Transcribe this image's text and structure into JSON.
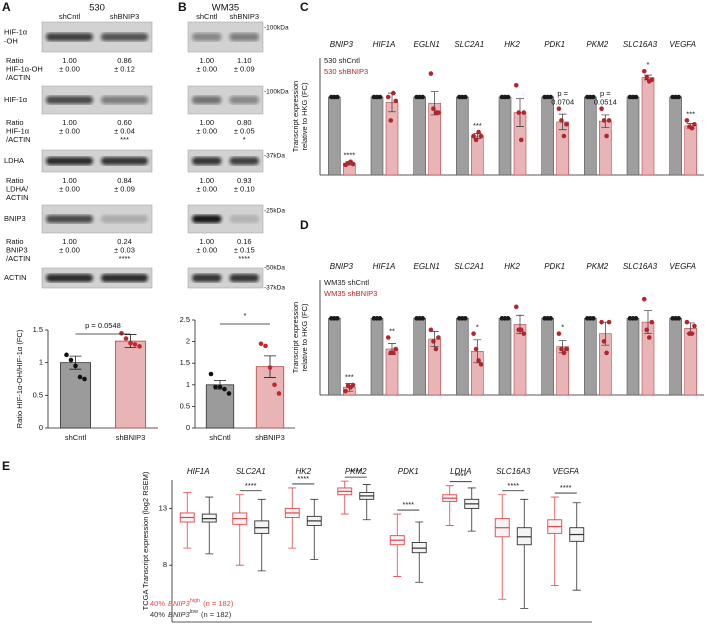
{
  "blot_panels": [
    {
      "panel": "A",
      "title": "530",
      "columns": [
        "shCntl",
        "shBNIP3"
      ],
      "rows": [
        {
          "name": [
            "HIF-1α",
            "-OH"
          ],
          "ratio_label": [
            "Ratio",
            "HIF-1α-OH",
            "/ACTIN"
          ],
          "ratios": [
            [
              "1.00",
              "± 0.00"
            ],
            [
              "0.86",
              "± 0.12"
            ]
          ]
        },
        {
          "name": [
            "HIF-1α"
          ],
          "ratio_label": [
            "Ratio",
            "HIF-1α",
            "/ACTIN"
          ],
          "ratios": [
            [
              "1.00",
              "± 0.00"
            ],
            [
              "0.60",
              "± 0.04"
            ]
          ],
          "significance": "***"
        },
        {
          "name": [
            "LDHA"
          ],
          "ratio_label": [
            "Ratio",
            "LDHA/",
            "ACTIN"
          ],
          "ratios": [
            [
              "1.00",
              "± 0.00"
            ],
            [
              "0.84",
              "± 0.09"
            ]
          ]
        },
        {
          "name": [
            "BNIP3"
          ],
          "ratio_label": [
            "Ratio",
            "BNIP3",
            "/ACTIN"
          ],
          "ratios": [
            [
              "1.00",
              "± 0.00"
            ],
            [
              "0.24",
              "± 0.03"
            ]
          ],
          "significance": "****"
        },
        {
          "name": [
            "ACTIN"
          ]
        }
      ]
    },
    {
      "panel": "B",
      "title": "WM35",
      "columns": [
        "shCntl",
        "shBNIP3"
      ],
      "rows": [
        {
          "markers": [
            "-100kDa"
          ],
          "ratios": [
            [
              "1.00",
              "± 0.00"
            ],
            [
              "1.10",
              "± 0.09"
            ]
          ]
        },
        {
          "markers": [
            "-100kDa"
          ],
          "ratios": [
            [
              "1.00",
              "± 0.00"
            ],
            [
              "0.80",
              "± 0.05"
            ]
          ],
          "significance": "*"
        },
        {
          "markers": [
            "-37kDa"
          ],
          "ratios": [
            [
              "1.00",
              "± 0.00"
            ],
            [
              "0.93",
              "± 0.10"
            ]
          ]
        },
        {
          "markers": [
            "-25kDa"
          ],
          "ratios": [
            [
              "1.00",
              "± 0.00"
            ],
            [
              "0.16",
              "± 0.15"
            ]
          ],
          "significance": "****"
        },
        {
          "markers": [
            "-50kDa",
            "-37kDa"
          ]
        }
      ]
    }
  ],
  "chart_data": [
    {
      "type": "bar",
      "categories": [
        "shCntl",
        "shBNIP3"
      ],
      "values": [
        1.0,
        1.33
      ],
      "errors": [
        0.1,
        0.1
      ],
      "points": [
        [
          1.12,
          1.04,
          0.95,
          0.78,
          0.75
        ],
        [
          1.45,
          1.37,
          1.3,
          1.28,
          1.25
        ]
      ],
      "colors": [
        "#9b9b9b",
        "#e8b4b6"
      ],
      "edgecolors": [
        "#333333",
        "#b5474c"
      ],
      "point_colors": [
        "#111111",
        "#c0282e"
      ],
      "ylim": [
        0,
        1.5
      ],
      "yticks": [
        0,
        0.5,
        1,
        1.5
      ],
      "ylabel": "Ratio HIF-1α-OH/HIF-1α (FC)",
      "annotation": "p = 0.0548"
    },
    {
      "type": "bar",
      "categories": [
        "shCntl",
        "shBNIP3"
      ],
      "values": [
        1.0,
        1.42
      ],
      "errors": [
        0.1,
        0.25
      ],
      "points": [
        [
          1.25,
          0.95,
          0.95,
          0.9,
          0.8
        ],
        [
          1.95,
          1.9,
          1.4,
          1.0,
          0.8
        ]
      ],
      "colors": [
        "#9b9b9b",
        "#e8b4b6"
      ],
      "edgecolors": [
        "#333333",
        "#b5474c"
      ],
      "point_colors": [
        "#111111",
        "#c0282e"
      ],
      "ylim": [
        0,
        2.5
      ],
      "yticks": [
        0,
        0.5,
        1,
        1.5,
        2,
        2.5
      ],
      "annotation": "*"
    },
    {
      "type": "grouped_bar",
      "panel": "C",
      "categories": [
        "BNIP3",
        "HIF1A",
        "EGLN1",
        "SLC2A1",
        "HK2",
        "PDK1",
        "PKM2",
        "SLC16A3",
        "VEGFA"
      ],
      "series": [
        {
          "name": "530 shCntl",
          "color": "#1a1a1a",
          "bar_color": "#9e9e9e",
          "values": [
            1,
            1,
            1,
            1,
            1,
            1,
            1,
            1,
            1
          ]
        },
        {
          "name": "530 shBNIP3",
          "color": "#b0262c",
          "bar_color": "#e8b4b6",
          "values": [
            0.15,
            0.93,
            0.92,
            0.5,
            0.8,
            0.68,
            0.69,
            1.25,
            0.63
          ],
          "errors": [
            0.02,
            0.12,
            0.15,
            0.03,
            0.18,
            0.1,
            0.08,
            0.03,
            0.03
          ],
          "points": [
            [
              0.13,
              0.15,
              0.17,
              0.14
            ],
            [
              1.0,
              0.7,
              1.05,
              0.95
            ],
            [
              1.3,
              0.85,
              0.8,
              0.8
            ],
            [
              0.5,
              0.45,
              0.55,
              0.5
            ],
            [
              1.15,
              0.8,
              0.45,
              0.8
            ],
            [
              0.85,
              0.7,
              0.5,
              0.65
            ],
            [
              0.85,
              0.7,
              0.5,
              0.7
            ],
            [
              1.33,
              1.25,
              1.2,
              1.22
            ],
            [
              0.7,
              0.62,
              0.6,
              0.65
            ]
          ]
        }
      ],
      "annotations": [
        [
          "****"
        ],
        null,
        null,
        [
          "***"
        ],
        null,
        [
          "p =",
          "0.0704"
        ],
        [
          "p =",
          "0.0514"
        ],
        [
          "*"
        ],
        [
          "***"
        ]
      ],
      "ylim": [
        0,
        1.5
      ],
      "ylabel": [
        "Transcript expression",
        "relative to HKG (FC)"
      ]
    },
    {
      "type": "grouped_bar",
      "panel": "D",
      "categories": [
        "BNIP3",
        "HIF1A",
        "EGLN1",
        "SLC2A1",
        "HK2",
        "PDK1",
        "PKM2",
        "SLC16A3",
        "VEGFA"
      ],
      "series": [
        {
          "name": "WM35 shCntl",
          "color": "#1a1a1a",
          "bar_color": "#9e9e9e",
          "values": [
            1,
            1,
            1,
            1,
            1,
            1,
            1,
            1,
            1
          ]
        },
        {
          "name": "WM35 shBNIP3",
          "color": "#b0262c",
          "bar_color": "#e8b4b6",
          "values": [
            0.1,
            0.6,
            0.73,
            0.57,
            0.92,
            0.63,
            0.8,
            0.95,
            0.87
          ],
          "errors": [
            0.05,
            0.07,
            0.1,
            0.15,
            0.12,
            0.08,
            0.15,
            0.15,
            0.07
          ],
          "points": [
            [
              0.05,
              0.12,
              0.1,
              0.13
            ],
            [
              0.75,
              0.55,
              0.55,
              0.6
            ],
            [
              0.85,
              0.7,
              0.6,
              0.75
            ],
            [
              0.8,
              0.6,
              0.45,
              0.4
            ],
            [
              1.15,
              0.85,
              0.85,
              0.8
            ],
            [
              0.8,
              0.6,
              0.55,
              0.6
            ],
            [
              0.95,
              0.7,
              0.55,
              0.95
            ],
            [
              1.25,
              0.85,
              0.75,
              0.95
            ],
            [
              0.95,
              0.8,
              0.8,
              0.9
            ]
          ]
        }
      ],
      "annotations": [
        [
          "***"
        ],
        [
          "**"
        ],
        null,
        [
          "*"
        ],
        null,
        [
          "*"
        ],
        null,
        null,
        null
      ],
      "ylim": [
        0,
        1.5
      ],
      "ylabel": [
        "Transcript expression",
        "relative to HKG (FC)"
      ]
    },
    {
      "type": "box",
      "panel": "E",
      "categories": [
        "HIF1A",
        "SLC2A1",
        "HK2",
        "PKM2",
        "PDK1",
        "LDHA",
        "SLC16A3",
        "VEGFA"
      ],
      "series": [
        {
          "name_parts": [
            "40%",
            "BNIP3",
            "high",
            "(n = 182)"
          ],
          "color": "#e0474c",
          "stats": [
            [
              9.5,
              11.8,
              12.2,
              12.6,
              14.4
            ],
            [
              8.0,
              11.6,
              12.1,
              12.6,
              14.2
            ],
            [
              9.5,
              12.2,
              12.6,
              13.0,
              14.8
            ],
            [
              12.5,
              14.2,
              14.5,
              14.8,
              15.4
            ],
            [
              7.0,
              9.8,
              10.2,
              10.6,
              12.5
            ],
            [
              11.5,
              13.6,
              13.9,
              14.2,
              15.0
            ],
            [
              5.0,
              10.5,
              11.3,
              12.1,
              14.2
            ],
            [
              6.2,
              10.8,
              11.4,
              12.0,
              14.0
            ]
          ]
        },
        {
          "name_parts": [
            "40%",
            "BNIP3",
            "low",
            "(n = 182)"
          ],
          "color": "#333333",
          "stats": [
            [
              9.0,
              11.8,
              12.1,
              12.5,
              14.0
            ],
            [
              7.5,
              10.8,
              11.3,
              11.9,
              13.8
            ],
            [
              8.5,
              11.5,
              11.9,
              12.3,
              13.8
            ],
            [
              12.0,
              13.8,
              14.1,
              14.4,
              15.1
            ],
            [
              6.5,
              9.1,
              9.5,
              10.0,
              11.8
            ],
            [
              11.0,
              13.0,
              13.4,
              13.8,
              14.8
            ],
            [
              4.2,
              9.8,
              10.5,
              11.3,
              13.8
            ],
            [
              5.8,
              10.1,
              10.7,
              11.3,
              13.5
            ]
          ]
        }
      ],
      "annotations": [
        null,
        "****",
        "****",
        "****",
        "****",
        "****",
        "****",
        "****"
      ],
      "ylim": [
        3,
        15.5
      ],
      "yticks": [
        8,
        13
      ],
      "ylabel": "TCGA Transcript expression (log2 RSEM)"
    }
  ]
}
